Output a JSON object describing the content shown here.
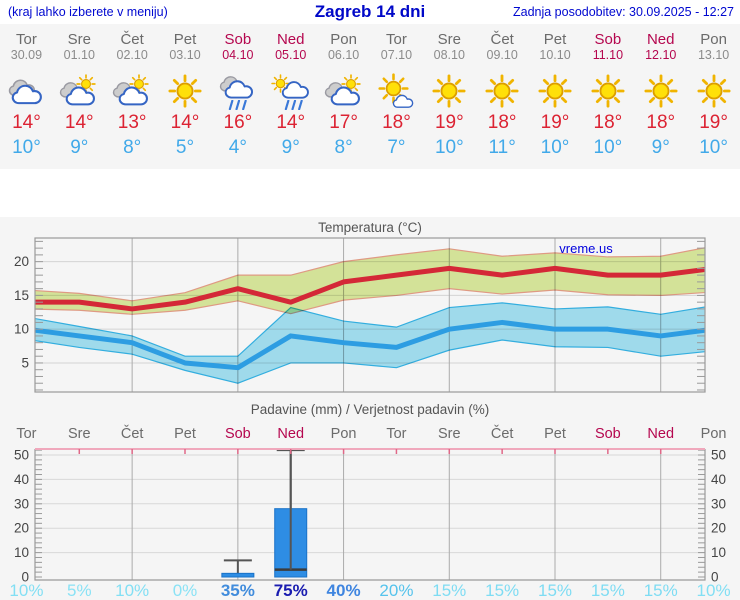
{
  "header": {
    "hint": "(kraj lahko izberete v meniju)",
    "title": "Zagreb 14 dni",
    "updated": "Zadnja posodobitev: 30.09.2025 - 12:27"
  },
  "colors": {
    "header_blue": "#0008c8",
    "weekday_gray": "#6b6b6b",
    "date_gray": "#8b8b8b",
    "weekend_crimson": "#b5074f",
    "max_temp_red": "#dc2333",
    "min_temp_blue": "#41a9e9",
    "bar_blue": "#2e8de4",
    "watermark_blue": "#0000dd",
    "panel_gray": "#f5f5f5"
  },
  "days": [
    {
      "name": "Tor",
      "date": "30.09",
      "weekend": false,
      "icon": "cloudy",
      "high": 14,
      "low": 10
    },
    {
      "name": "Sre",
      "date": "01.10",
      "weekend": false,
      "icon": "partly-cloudy",
      "high": 14,
      "low": 9
    },
    {
      "name": "Čet",
      "date": "02.10",
      "weekend": false,
      "icon": "partly-cloudy",
      "high": 13,
      "low": 8
    },
    {
      "name": "Pet",
      "date": "03.10",
      "weekend": false,
      "icon": "sunny",
      "high": 14,
      "low": 5
    },
    {
      "name": "Sob",
      "date": "04.10",
      "weekend": true,
      "icon": "rain",
      "high": 16,
      "low": 4
    },
    {
      "name": "Ned",
      "date": "05.10",
      "weekend": true,
      "icon": "sun-rain",
      "high": 14,
      "low": 9
    },
    {
      "name": "Pon",
      "date": "06.10",
      "weekend": false,
      "icon": "partly-cloudy",
      "high": 17,
      "low": 8
    },
    {
      "name": "Tor",
      "date": "07.10",
      "weekend": false,
      "icon": "mostly-sunny",
      "high": 18,
      "low": 7
    },
    {
      "name": "Sre",
      "date": "08.10",
      "weekend": false,
      "icon": "sunny",
      "high": 19,
      "low": 10
    },
    {
      "name": "Čet",
      "date": "09.10",
      "weekend": false,
      "icon": "sunny",
      "high": 18,
      "low": 11
    },
    {
      "name": "Pet",
      "date": "10.10",
      "weekend": false,
      "icon": "sunny",
      "high": 19,
      "low": 10
    },
    {
      "name": "Sob",
      "date": "11.10",
      "weekend": true,
      "icon": "sunny",
      "high": 18,
      "low": 10
    },
    {
      "name": "Ned",
      "date": "12.10",
      "weekend": true,
      "icon": "sunny",
      "high": 18,
      "low": 9
    },
    {
      "name": "Pon",
      "date": "13.10",
      "weekend": false,
      "icon": "sunny",
      "high": 19,
      "low": 10
    }
  ],
  "chart_data": [
    {
      "type": "line",
      "title": "Temperatura (°C)",
      "watermark": "vreme.us",
      "ylim": [
        0.7,
        23.5
      ],
      "yticks": [
        5,
        10,
        15,
        20
      ],
      "x_count": 14,
      "gridline_day_indices": [
        2,
        4,
        6,
        8,
        10,
        12
      ],
      "series": [
        {
          "name": "max-temp",
          "color": "#d42837",
          "width": 5,
          "values": [
            14,
            14,
            13,
            14,
            16,
            14,
            17,
            18,
            19,
            18,
            19,
            18,
            18,
            19
          ]
        },
        {
          "name": "min-temp",
          "color": "#2d9de2",
          "width": 5,
          "values": [
            10,
            9,
            8,
            5,
            4.3,
            9,
            8,
            7.3,
            10,
            11,
            10,
            10,
            9,
            10
          ]
        }
      ],
      "bands": [
        {
          "name": "max-temp-range",
          "fill": "#dcec9e",
          "edge": "#e8a088",
          "upper": [
            15.8,
            15.3,
            14.2,
            15.4,
            18,
            18,
            20,
            21,
            21.9,
            20.8,
            21.3,
            20.7,
            20.8,
            22.3
          ],
          "lower": [
            13,
            12.8,
            12.2,
            12.8,
            14.2,
            12.3,
            14.3,
            15,
            16,
            15.2,
            15.8,
            15.1,
            15,
            15.5
          ]
        },
        {
          "name": "min-temp-range",
          "fill": "#a6e3f5",
          "edge": "#35b5e8",
          "upper": [
            11.8,
            10.4,
            9,
            6,
            6,
            13.2,
            11.2,
            10.3,
            13.2,
            13.9,
            13,
            13.3,
            12.2,
            13.5
          ],
          "lower": [
            8.5,
            7.3,
            6.3,
            3.9,
            2,
            5,
            5,
            4.3,
            6.9,
            8.4,
            7.4,
            7.3,
            6,
            6.8
          ]
        }
      ]
    },
    {
      "type": "bar",
      "title": "Padavine (mm) / Verjetnost padavin (%)",
      "ylim": [
        -1.2,
        52.5
      ],
      "yticks": [
        0,
        10,
        20,
        30,
        40,
        50
      ],
      "gridline_day_indices": [
        2,
        4,
        6,
        8,
        10,
        12
      ],
      "bars": [
        {
          "day_index": 4,
          "value": 1.5,
          "range_min": 0,
          "range_max": 6.8
        },
        {
          "day_index": 5,
          "value": 28,
          "range_min": 3,
          "range_max": 52
        }
      ],
      "probabilities": [
        "10%",
        "5%",
        "10%",
        "0%",
        "35%",
        "75%",
        "40%",
        "20%",
        "15%",
        "15%",
        "15%",
        "15%",
        "15%",
        "10%"
      ],
      "probability_colors": [
        "#82dff4",
        "#8ae2f5",
        "#82dff4",
        "#8ae2f5",
        "#418cdc",
        "#1a1cb0",
        "#3f85e0",
        "#55c3ec",
        "#7edcf3",
        "#7edcf3",
        "#7edcf3",
        "#7edcf3",
        "#7edcf3",
        "#82dff4"
      ]
    }
  ]
}
